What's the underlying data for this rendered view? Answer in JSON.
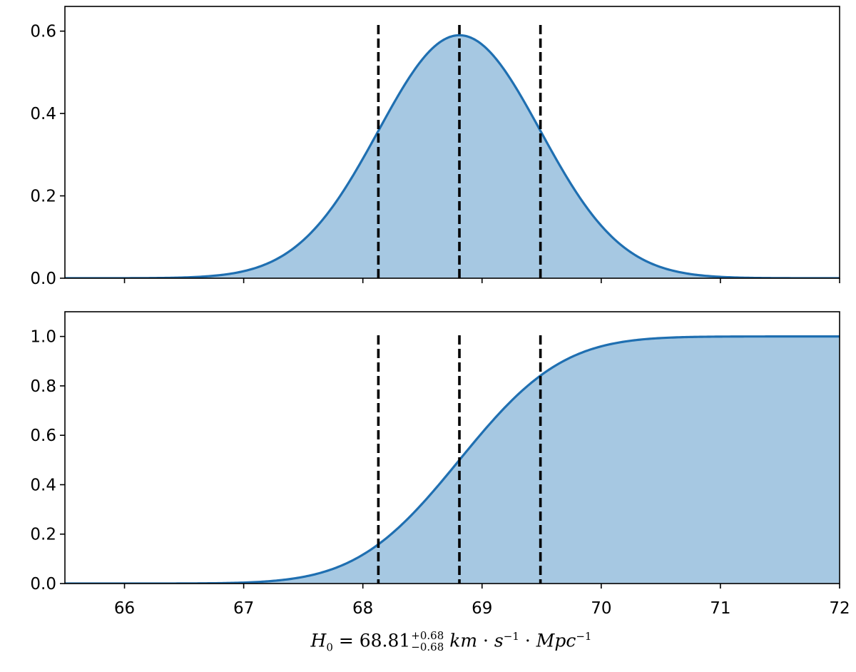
{
  "chart_data": [
    {
      "type": "area",
      "panel": "top",
      "description_of_series": "kernel density of posterior samples (histogram + smooth curve)",
      "xlim": [
        65.5,
        72
      ],
      "ylim": [
        0,
        0.66
      ],
      "yticks": [
        0.0,
        0.2,
        0.4,
        0.6
      ],
      "ytick_labels": [
        "0.0",
        "0.2",
        "0.4",
        "0.6"
      ],
      "grid": false,
      "distribution": {
        "mean": 68.81,
        "sigma": 0.68,
        "peak": 0.59
      },
      "vlines": [
        68.13,
        68.81,
        69.49
      ],
      "fill_color": "#a6c8e2",
      "line_color": "#1f6fb1",
      "vline_color": "#000000"
    },
    {
      "type": "area",
      "panel": "bottom",
      "description_of_series": "cumulative distribution of posterior samples",
      "xlim": [
        65.5,
        72
      ],
      "ylim": [
        0,
        1.1
      ],
      "yticks": [
        0.0,
        0.2,
        0.4,
        0.6,
        0.8,
        1.0
      ],
      "ytick_labels": [
        "0.0",
        "0.2",
        "0.4",
        "0.6",
        "0.8",
        "1.0"
      ],
      "xticks": [
        66,
        67,
        68,
        69,
        70,
        71,
        72
      ],
      "xtick_labels": [
        "66",
        "67",
        "68",
        "69",
        "70",
        "71",
        "72"
      ],
      "grid": false,
      "distribution": {
        "mean": 68.81,
        "sigma": 0.68
      },
      "vlines": [
        68.13,
        68.81,
        69.49
      ],
      "fill_color": "#a6c8e2",
      "line_color": "#1f6fb1",
      "vline_color": "#000000"
    }
  ],
  "xlabel": {
    "symbol": "H",
    "symbol_sub": "0",
    "equals": " = ",
    "value": "68.81",
    "upper_err": "+0.68",
    "lower_err": "−0.68",
    "unit_km": "km",
    "dot": " · ",
    "unit_s": "s",
    "unit_s_exp": "−1",
    "unit_mpc": "Mpc",
    "unit_mpc_exp": "−1"
  }
}
